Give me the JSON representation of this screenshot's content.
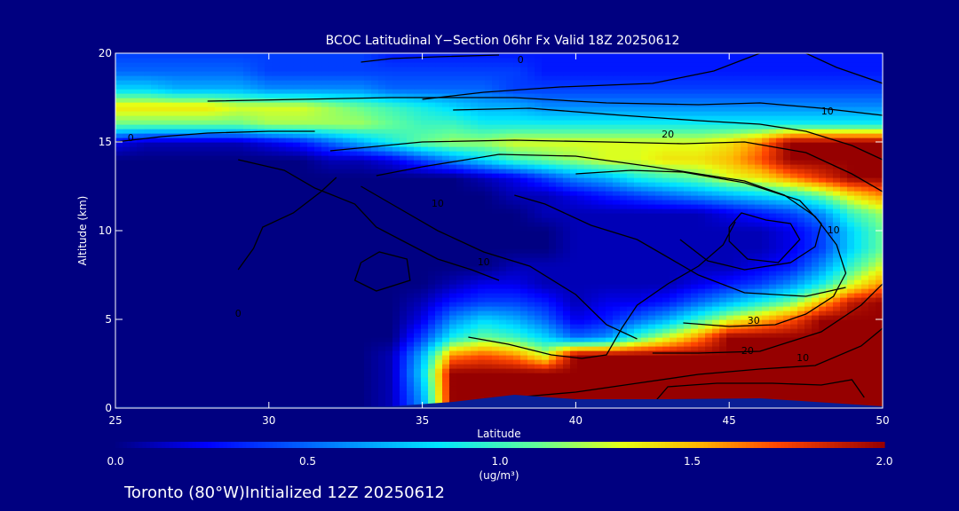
{
  "chart_data": {
    "type": "heatmap",
    "title": "BCOC Latitudinal Y−Section 06hr  Fx Valid 18Z 20250612",
    "xlabel": "Latitude",
    "ylabel": "Altitude (km)",
    "xlim": [
      25,
      50
    ],
    "ylim": [
      0,
      20
    ],
    "xticks": [
      "25",
      "30",
      "35",
      "40",
      "45",
      "50"
    ],
    "yticks": [
      "0",
      "5",
      "10",
      "15",
      "20"
    ],
    "colorbar": {
      "range": [
        0.0,
        2.0
      ],
      "ticks": [
        "0.0",
        "0.5",
        "1.0",
        "1.5",
        "2.0"
      ],
      "unit_label": "(ug/m³)"
    },
    "lat": [
      25,
      26,
      27,
      28,
      29,
      30,
      31,
      32,
      33,
      34,
      35,
      36,
      37,
      38,
      39,
      40,
      41,
      42,
      43,
      44,
      45,
      46,
      47,
      48,
      49,
      50
    ],
    "alt": [
      0,
      1,
      2,
      3,
      4,
      5,
      6,
      7,
      8,
      9,
      10,
      11,
      12,
      13,
      14,
      15,
      16,
      17,
      18,
      19,
      20
    ],
    "values": [
      [
        0.0,
        0.0,
        0.0,
        0.0,
        0.0,
        0.0,
        0.0,
        0.0,
        0.0,
        0.1,
        0.6,
        2.0,
        2.0,
        2.0,
        2.0,
        2.0,
        2.0,
        2.0,
        2.0,
        2.0,
        2.0,
        2.0,
        2.0,
        2.0,
        2.0,
        2.0
      ],
      [
        0.0,
        0.0,
        0.0,
        0.0,
        0.0,
        0.0,
        0.0,
        0.0,
        0.0,
        0.1,
        0.7,
        2.0,
        2.0,
        2.0,
        2.0,
        2.0,
        2.0,
        2.0,
        2.0,
        2.0,
        2.0,
        2.0,
        2.0,
        2.0,
        2.0,
        2.0
      ],
      [
        0.0,
        0.0,
        0.0,
        0.0,
        0.0,
        0.0,
        0.0,
        0.0,
        0.0,
        0.1,
        0.8,
        2.0,
        2.0,
        2.0,
        2.0,
        2.0,
        2.0,
        2.0,
        2.0,
        2.0,
        2.0,
        2.0,
        2.0,
        2.0,
        2.0,
        2.0
      ],
      [
        0.0,
        0.0,
        0.0,
        0.0,
        0.0,
        0.0,
        0.0,
        0.0,
        0.0,
        0.1,
        0.7,
        1.6,
        1.7,
        1.6,
        1.3,
        2.0,
        2.0,
        2.0,
        2.0,
        2.0,
        2.0,
        2.0,
        2.0,
        2.0,
        2.0,
        2.0
      ],
      [
        0.0,
        0.0,
        0.0,
        0.0,
        0.0,
        0.0,
        0.0,
        0.0,
        0.0,
        0.0,
        0.4,
        0.9,
        1.1,
        1.0,
        0.8,
        0.5,
        0.6,
        1.0,
        1.3,
        1.6,
        2.0,
        2.0,
        2.0,
        2.0,
        2.0,
        2.0
      ],
      [
        0.0,
        0.0,
        0.0,
        0.0,
        0.0,
        0.0,
        0.0,
        0.0,
        0.0,
        0.0,
        0.2,
        0.6,
        0.8,
        0.7,
        0.5,
        0.2,
        0.3,
        0.5,
        0.7,
        1.0,
        1.3,
        1.5,
        1.7,
        2.0,
        2.0,
        2.0
      ],
      [
        0.0,
        0.0,
        0.0,
        0.0,
        0.0,
        0.0,
        0.0,
        0.0,
        0.0,
        0.0,
        0.1,
        0.3,
        0.4,
        0.4,
        0.3,
        0.1,
        0.2,
        0.2,
        0.3,
        0.5,
        0.7,
        0.9,
        1.1,
        1.5,
        1.9,
        2.0
      ],
      [
        0.0,
        0.0,
        0.0,
        0.0,
        0.0,
        0.0,
        0.0,
        0.0,
        0.0,
        0.0,
        0.0,
        0.1,
        0.2,
        0.2,
        0.1,
        0.1,
        0.1,
        0.1,
        0.1,
        0.2,
        0.3,
        0.4,
        0.6,
        0.9,
        1.3,
        1.6
      ],
      [
        0.0,
        0.0,
        0.0,
        0.0,
        0.0,
        0.0,
        0.0,
        0.0,
        0.0,
        0.0,
        0.0,
        0.0,
        0.0,
        0.1,
        0.1,
        0.1,
        0.1,
        0.1,
        0.1,
        0.1,
        0.1,
        0.2,
        0.3,
        0.6,
        1.0,
        1.3
      ],
      [
        0.0,
        0.0,
        0.0,
        0.0,
        0.0,
        0.0,
        0.0,
        0.0,
        0.0,
        0.0,
        0.0,
        0.0,
        0.0,
        0.0,
        0.0,
        0.1,
        0.1,
        0.1,
        0.1,
        0.1,
        0.1,
        0.1,
        0.2,
        0.4,
        0.8,
        1.1
      ],
      [
        0.0,
        0.0,
        0.0,
        0.0,
        0.0,
        0.0,
        0.0,
        0.0,
        0.0,
        0.0,
        0.0,
        0.0,
        0.0,
        0.0,
        0.0,
        0.1,
        0.1,
        0.1,
        0.1,
        0.1,
        0.1,
        0.1,
        0.2,
        0.4,
        0.8,
        1.1
      ],
      [
        0.0,
        0.0,
        0.0,
        0.0,
        0.0,
        0.0,
        0.0,
        0.0,
        0.0,
        0.0,
        0.0,
        0.0,
        0.0,
        0.0,
        0.1,
        0.1,
        0.1,
        0.1,
        0.1,
        0.1,
        0.2,
        0.3,
        0.4,
        0.6,
        1.0,
        1.2
      ],
      [
        0.0,
        0.0,
        0.0,
        0.0,
        0.0,
        0.0,
        0.0,
        0.0,
        0.0,
        0.0,
        0.0,
        0.0,
        0.0,
        0.1,
        0.1,
        0.2,
        0.3,
        0.4,
        0.5,
        0.6,
        0.7,
        0.8,
        0.9,
        1.1,
        1.4,
        1.6
      ],
      [
        0.0,
        0.0,
        0.0,
        0.0,
        0.0,
        0.0,
        0.0,
        0.0,
        0.0,
        0.0,
        0.0,
        0.0,
        0.1,
        0.2,
        0.4,
        0.6,
        0.7,
        0.9,
        1.0,
        1.1,
        1.3,
        1.4,
        1.6,
        1.8,
        2.0,
        2.0
      ],
      [
        0.0,
        0.0,
        0.0,
        0.0,
        0.0,
        0.0,
        0.0,
        0.1,
        0.1,
        0.2,
        0.4,
        0.6,
        0.8,
        1.0,
        1.1,
        1.2,
        1.3,
        1.3,
        1.4,
        1.4,
        1.5,
        1.7,
        2.0,
        2.0,
        2.0,
        2.0
      ],
      [
        0.2,
        0.1,
        0.1,
        0.1,
        0.1,
        0.2,
        0.3,
        0.5,
        0.7,
        0.9,
        1.1,
        1.2,
        1.2,
        1.3,
        1.3,
        1.3,
        1.3,
        1.3,
        1.3,
        1.3,
        1.4,
        1.6,
        2.0,
        2.0,
        2.0,
        2.0
      ],
      [
        1.1,
        1.1,
        1.1,
        1.1,
        1.1,
        1.2,
        1.2,
        1.2,
        1.2,
        1.1,
        1.0,
        1.0,
        0.9,
        0.9,
        0.9,
        0.9,
        0.9,
        0.9,
        0.9,
        0.9,
        0.9,
        0.9,
        0.9,
        0.9,
        0.9,
        0.9
      ],
      [
        1.4,
        1.4,
        1.4,
        1.4,
        1.3,
        1.3,
        1.3,
        1.2,
        1.1,
        1.0,
        0.9,
        0.8,
        0.7,
        0.7,
        0.6,
        0.6,
        0.6,
        0.6,
        0.6,
        0.6,
        0.6,
        0.6,
        0.6,
        0.6,
        0.6,
        0.6
      ],
      [
        0.8,
        0.8,
        0.7,
        0.7,
        0.7,
        0.6,
        0.6,
        0.6,
        0.6,
        0.5,
        0.5,
        0.5,
        0.5,
        0.4,
        0.4,
        0.4,
        0.4,
        0.4,
        0.4,
        0.4,
        0.4,
        0.4,
        0.4,
        0.4,
        0.4,
        0.4
      ],
      [
        0.5,
        0.5,
        0.5,
        0.5,
        0.5,
        0.4,
        0.4,
        0.4,
        0.4,
        0.4,
        0.4,
        0.4,
        0.4,
        0.4,
        0.3,
        0.3,
        0.3,
        0.3,
        0.3,
        0.3,
        0.3,
        0.3,
        0.3,
        0.3,
        0.3,
        0.3
      ],
      [
        0.4,
        0.4,
        0.4,
        0.4,
        0.4,
        0.4,
        0.4,
        0.4,
        0.4,
        0.3,
        0.3,
        0.3,
        0.3,
        0.3,
        0.3,
        0.3,
        0.3,
        0.3,
        0.3,
        0.3,
        0.3,
        0.3,
        0.3,
        0.3,
        0.3,
        0.3
      ]
    ],
    "contours": [
      {
        "label": "30",
        "points": [
          [
            43.5,
            4.8
          ],
          [
            45.0,
            4.6
          ],
          [
            46.5,
            4.7
          ],
          [
            47.5,
            5.3
          ],
          [
            48.4,
            6.3
          ],
          [
            48.8,
            7.6
          ],
          [
            48.5,
            9.2
          ],
          [
            47.8,
            10.8
          ],
          [
            46.8,
            12.0
          ],
          [
            45.5,
            12.8
          ],
          [
            44.0,
            13.2
          ],
          [
            42.5,
            13.6
          ],
          [
            40.0,
            14.2
          ],
          [
            37.5,
            14.3
          ],
          [
            35.0,
            13.6
          ],
          [
            33.5,
            13.1
          ]
        ],
        "label_at": [
          45.8,
          4.9
        ]
      },
      {
        "label": "20",
        "points": [
          [
            42.5,
            3.1
          ],
          [
            44.0,
            3.1
          ],
          [
            46.0,
            3.2
          ],
          [
            48.0,
            4.3
          ],
          [
            49.3,
            5.8
          ],
          [
            50.0,
            7.0
          ]
        ],
        "label_at": [
          45.6,
          3.2
        ]
      },
      {
        "label": "20",
        "points": [
          [
            32.0,
            14.5
          ],
          [
            35.0,
            15.0
          ],
          [
            38.0,
            15.1
          ],
          [
            41.0,
            15.0
          ],
          [
            43.5,
            14.9
          ],
          [
            45.5,
            15.0
          ],
          [
            47.5,
            14.4
          ],
          [
            49.0,
            13.2
          ],
          [
            50.0,
            12.2
          ]
        ],
        "label_at": [
          43.0,
          15.4
        ]
      },
      {
        "label": "10",
        "points": [
          [
            38.0,
            0.6
          ],
          [
            40.0,
            0.9
          ],
          [
            42.0,
            1.4
          ],
          [
            44.0,
            1.9
          ],
          [
            46.0,
            2.2
          ],
          [
            47.8,
            2.4
          ],
          [
            49.3,
            3.5
          ],
          [
            50.0,
            4.5
          ]
        ],
        "label_at": [
          47.4,
          2.8
        ]
      },
      {
        "label": "10",
        "points": [
          [
            28.0,
            17.3
          ],
          [
            31.0,
            17.4
          ],
          [
            34.0,
            17.5
          ],
          [
            38.0,
            17.5
          ],
          [
            41.0,
            17.2
          ],
          [
            44.0,
            17.1
          ],
          [
            46.0,
            17.2
          ],
          [
            48.0,
            16.9
          ],
          [
            50.0,
            16.5
          ]
        ],
        "label_at": [
          48.2,
          16.7
        ]
      },
      {
        "label": "10",
        "points": [
          [
            33.0,
            12.5
          ],
          [
            34.0,
            11.5
          ],
          [
            35.5,
            10.0
          ],
          [
            37.0,
            8.8
          ],
          [
            38.5,
            8.0
          ],
          [
            40.0,
            6.4
          ],
          [
            41.0,
            4.7
          ],
          [
            42.0,
            3.9
          ]
        ],
        "label_at": [
          37.0,
          8.2
        ]
      },
      {
        "label": "10",
        "points": [
          [
            40.0,
            13.2
          ],
          [
            41.8,
            13.4
          ],
          [
            43.5,
            13.3
          ],
          [
            45.5,
            12.7
          ],
          [
            47.3,
            11.7
          ],
          [
            48.0,
            10.4
          ],
          [
            47.8,
            9.1
          ],
          [
            47.0,
            8.2
          ],
          [
            45.5,
            7.8
          ],
          [
            44.3,
            8.3
          ],
          [
            43.4,
            9.5
          ]
        ],
        "label_at": [
          48.4,
          10.0
        ]
      },
      {
        "label": "10",
        "points": [
          [
            29.0,
            14.0
          ],
          [
            30.5,
            13.4
          ],
          [
            31.5,
            12.4
          ],
          [
            32.8,
            11.5
          ],
          [
            33.5,
            10.2
          ],
          [
            34.5,
            9.3
          ],
          [
            35.5,
            8.4
          ],
          [
            36.6,
            7.8
          ],
          [
            37.5,
            7.2
          ]
        ],
        "label_at": [
          35.5,
          11.5
        ]
      },
      {
        "label": "0",
        "points": [
          [
            25.0,
            15.0
          ],
          [
            26.5,
            15.3
          ],
          [
            28.0,
            15.5
          ],
          [
            30.0,
            15.6
          ],
          [
            31.5,
            15.6
          ]
        ],
        "label_at": [
          25.5,
          15.2
        ]
      },
      {
        "label": "0",
        "points": [
          [
            33.0,
            19.5
          ],
          [
            34.0,
            19.7
          ],
          [
            35.5,
            19.8
          ],
          [
            37.5,
            19.9
          ]
        ],
        "label_at": [
          38.2,
          19.6
        ]
      },
      {
        "label": "0",
        "points": [
          [
            29.0,
            7.8
          ],
          [
            29.5,
            9.0
          ],
          [
            29.8,
            10.2
          ],
          [
            30.8,
            11.0
          ],
          [
            31.7,
            12.2
          ],
          [
            32.2,
            13.0
          ]
        ],
        "label_at": [
          29.0,
          5.3
        ]
      },
      {
        "label": "",
        "points": [
          [
            36.0,
            16.8
          ],
          [
            38.5,
            16.9
          ],
          [
            41.5,
            16.5
          ],
          [
            44.0,
            16.2
          ],
          [
            46.0,
            16.0
          ],
          [
            47.5,
            15.6
          ],
          [
            49.0,
            14.8
          ],
          [
            50.0,
            14.0
          ]
        ],
        "label_at": null
      },
      {
        "label": "",
        "points": [
          [
            35.0,
            17.4
          ],
          [
            37.0,
            17.8
          ],
          [
            39.5,
            18.1
          ],
          [
            42.5,
            18.3
          ],
          [
            44.5,
            19.0
          ],
          [
            46.0,
            20.0
          ],
          [
            47.5,
            20.0
          ],
          [
            48.5,
            19.2
          ],
          [
            50.0,
            18.3
          ]
        ],
        "label_at": null
      },
      {
        "label": "",
        "points": [
          [
            45.0,
            10.2
          ],
          [
            45.4,
            11.0
          ],
          [
            46.2,
            10.6
          ],
          [
            47.0,
            10.4
          ],
          [
            47.3,
            9.5
          ],
          [
            46.6,
            8.2
          ],
          [
            45.6,
            8.4
          ],
          [
            45.0,
            9.4
          ],
          [
            45.0,
            10.2
          ]
        ],
        "label_at": null
      },
      {
        "label": "",
        "points": [
          [
            33.0,
            8.2
          ],
          [
            33.6,
            8.8
          ],
          [
            34.5,
            8.4
          ],
          [
            34.6,
            7.2
          ],
          [
            33.5,
            6.6
          ],
          [
            32.8,
            7.2
          ],
          [
            33.0,
            8.2
          ]
        ],
        "label_at": null
      },
      {
        "label": "",
        "points": [
          [
            42.6,
            0.4
          ],
          [
            43.0,
            1.2
          ],
          [
            44.6,
            1.4
          ],
          [
            46.4,
            1.4
          ],
          [
            48.0,
            1.3
          ],
          [
            49.0,
            1.6
          ],
          [
            49.4,
            0.6
          ]
        ],
        "label_at": null
      },
      {
        "label": "",
        "points": [
          [
            36.5,
            4.0
          ],
          [
            37.8,
            3.6
          ],
          [
            39.2,
            3.0
          ],
          [
            40.2,
            2.8
          ],
          [
            41.0,
            3.0
          ],
          [
            41.5,
            4.5
          ],
          [
            42.0,
            5.8
          ],
          [
            43.0,
            7.0
          ],
          [
            44.0,
            8.0
          ],
          [
            44.8,
            9.2
          ],
          [
            45.2,
            10.5
          ]
        ],
        "label_at": null
      },
      {
        "label": "",
        "points": [
          [
            38.0,
            12.0
          ],
          [
            39.0,
            11.5
          ],
          [
            40.5,
            10.3
          ],
          [
            42.0,
            9.5
          ],
          [
            43.0,
            8.5
          ],
          [
            44.0,
            7.5
          ],
          [
            45.5,
            6.5
          ],
          [
            47.5,
            6.3
          ],
          [
            48.8,
            6.8
          ]
        ],
        "label_at": null
      }
    ]
  },
  "footer_text": "Toronto (80°W)Initialized 12Z 20250612",
  "colors": {
    "background": "#000080",
    "axes": "#ffffff",
    "contour": "#000000",
    "terrain": "#0a1e96"
  }
}
